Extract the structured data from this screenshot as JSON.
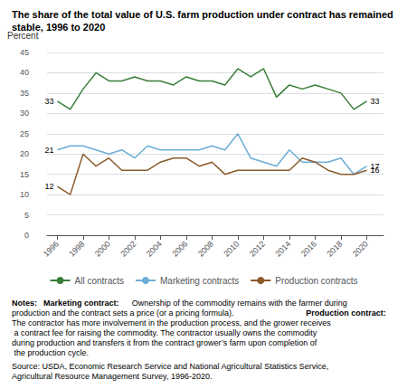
{
  "chart_data": {
    "type": "line",
    "title": "The share of the total value of U.S. farm production under contract has remained stable, 1996 to 2020",
    "ylabel": "Percent",
    "x": [
      1996,
      1997,
      1998,
      1999,
      2000,
      2001,
      2002,
      2003,
      2004,
      2005,
      2006,
      2007,
      2008,
      2009,
      2010,
      2011,
      2012,
      2013,
      2014,
      2015,
      2016,
      2017,
      2018,
      2019,
      2020
    ],
    "series": [
      {
        "name": "All contracts",
        "color": "#3a7d3a",
        "values": [
          33,
          31,
          36,
          40,
          38,
          38,
          39,
          38,
          38,
          37,
          39,
          38,
          38,
          37,
          41,
          39,
          41,
          34,
          37,
          36,
          37,
          36,
          35,
          31,
          33
        ]
      },
      {
        "name": "Marketing contracts",
        "color": "#6baed6",
        "values": [
          21,
          22,
          22,
          21,
          20,
          21,
          19,
          22,
          21,
          21,
          21,
          21,
          22,
          21,
          25,
          19,
          18,
          17,
          21,
          18,
          18,
          18,
          19,
          15,
          17
        ]
      },
      {
        "name": "Production contracts",
        "color": "#8b5a2b",
        "values": [
          12,
          10,
          20,
          17,
          19,
          16,
          16,
          16,
          18,
          19,
          19,
          17,
          18,
          15,
          16,
          16,
          16,
          16,
          16,
          19,
          18,
          16,
          15,
          15,
          16
        ]
      }
    ],
    "xlim": [
      1995.2,
      2021.3
    ],
    "xticks": [
      1996,
      1998,
      2000,
      2002,
      2004,
      2006,
      2008,
      2010,
      2012,
      2014,
      2016,
      2018,
      2020
    ],
    "ylim": [
      0,
      45
    ],
    "yticks": [
      0,
      5,
      10,
      15,
      20,
      25,
      30,
      35,
      40,
      45
    ],
    "grid": true,
    "legend": "bottom",
    "annotations": [
      {
        "text": "33",
        "x": 1996,
        "y": 33,
        "series": "All contracts"
      },
      {
        "text": "21",
        "x": 1996,
        "y": 21,
        "series": "Marketing contracts"
      },
      {
        "text": "12",
        "x": 1996,
        "y": 12,
        "series": "Production contracts"
      },
      {
        "text": "33",
        "x": 2020,
        "y": 33,
        "series": "All contracts"
      },
      {
        "text": "17",
        "x": 2020,
        "y": 17,
        "series": "Marketing contracts"
      },
      {
        "text": "16",
        "x": 2020,
        "y": 16,
        "series": "Production contracts"
      }
    ],
    "notes": [
      {
        "text": "Notes: ",
        "bold": true
      },
      {
        "text": "Marketing contract:",
        "bold": true
      },
      {
        "text": " Ownership of the commodity remains with the farmer during production and the contract sets a price (or a pricing formula). ",
        "bold": false
      },
      {
        "text": "Production contract:",
        "bold": true
      },
      {
        "text": " The contractor has more involvement in the production process, and the grower receives a contract fee for raising the commodity. The contractor usually owns the commodity during production and transfers it from the contract grower’s farm upon completion of the production cycle.",
        "bold": false
      }
    ],
    "source": "Source: USDA, Economic Research Service and National Agricultural Statistics Service, Agricultural Resource Management Survey, 1996-2020."
  }
}
